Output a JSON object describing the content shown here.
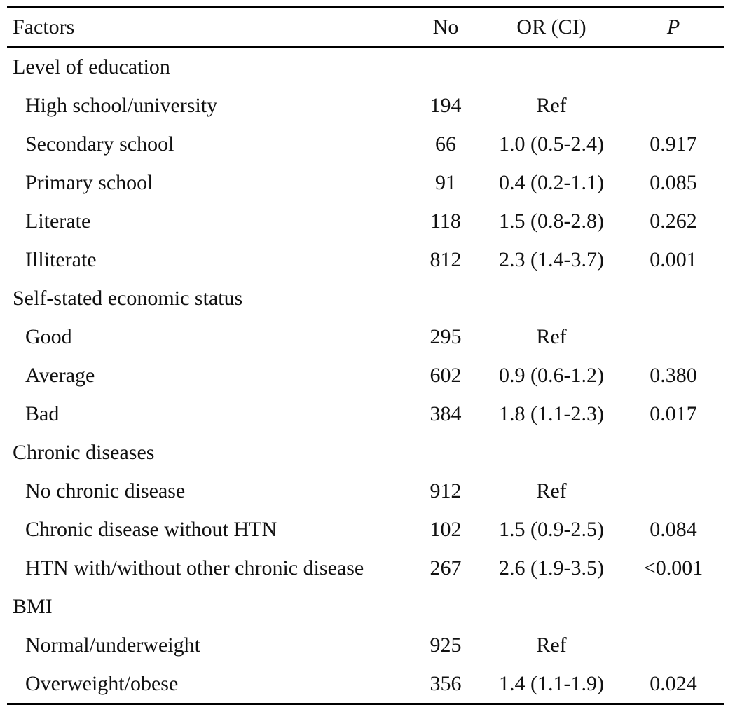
{
  "headers": {
    "factors": "Factors",
    "no": "No",
    "or_ci": "OR (CI)",
    "p": "P"
  },
  "rows": [
    {
      "type": "group",
      "factor": "Level of education",
      "no": "",
      "or_ci": "",
      "p": ""
    },
    {
      "type": "item",
      "factor": "High school/university",
      "no": "194",
      "or_ci": "Ref",
      "p": ""
    },
    {
      "type": "item",
      "factor": "Secondary school",
      "no": "66",
      "or_ci": "1.0 (0.5-2.4)",
      "p": "0.917"
    },
    {
      "type": "item",
      "factor": "Primary school",
      "no": "91",
      "or_ci": "0.4 (0.2-1.1)",
      "p": "0.085"
    },
    {
      "type": "item",
      "factor": "Literate",
      "no": "118",
      "or_ci": "1.5 (0.8-2.8)",
      "p": "0.262"
    },
    {
      "type": "item",
      "factor": "Illiterate",
      "no": "812",
      "or_ci": "2.3 (1.4-3.7)",
      "p": "0.001"
    },
    {
      "type": "group",
      "factor": "Self-stated economic status",
      "no": "",
      "or_ci": "",
      "p": ""
    },
    {
      "type": "item",
      "factor": "Good",
      "no": "295",
      "or_ci": "Ref",
      "p": ""
    },
    {
      "type": "item",
      "factor": "Average",
      "no": "602",
      "or_ci": "0.9 (0.6-1.2)",
      "p": "0.380"
    },
    {
      "type": "item",
      "factor": "Bad",
      "no": "384",
      "or_ci": "1.8 (1.1-2.3)",
      "p": "0.017"
    },
    {
      "type": "group",
      "factor": "Chronic diseases",
      "no": "",
      "or_ci": "",
      "p": ""
    },
    {
      "type": "item",
      "factor": "No chronic disease",
      "no": "912",
      "or_ci": "Ref",
      "p": ""
    },
    {
      "type": "item",
      "factor": "Chronic disease without HTN",
      "no": "102",
      "or_ci": "1.5 (0.9-2.5)",
      "p": "0.084"
    },
    {
      "type": "item",
      "factor": "HTN with/without other chronic disease",
      "no": "267",
      "or_ci": "2.6 (1.9-3.5)",
      "p": "<0.001"
    },
    {
      "type": "group",
      "factor": "BMI",
      "no": "",
      "or_ci": "",
      "p": ""
    },
    {
      "type": "item",
      "factor": "Normal/underweight",
      "no": "925",
      "or_ci": "Ref",
      "p": ""
    },
    {
      "type": "item",
      "factor": "Overweight/obese",
      "no": "356",
      "or_ci": "1.4 (1.1-1.9)",
      "p": "0.024"
    }
  ]
}
